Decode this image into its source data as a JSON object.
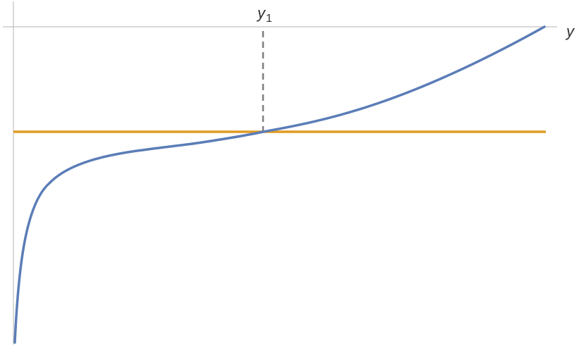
{
  "axis_label": "y",
  "marker": {
    "symbol": "y",
    "subscript": "1"
  },
  "colors": {
    "curve": "#5b7db7",
    "level_line": "#e19c24",
    "guide": "#7f7f7f",
    "axis": "#b3b3b3"
  }
}
